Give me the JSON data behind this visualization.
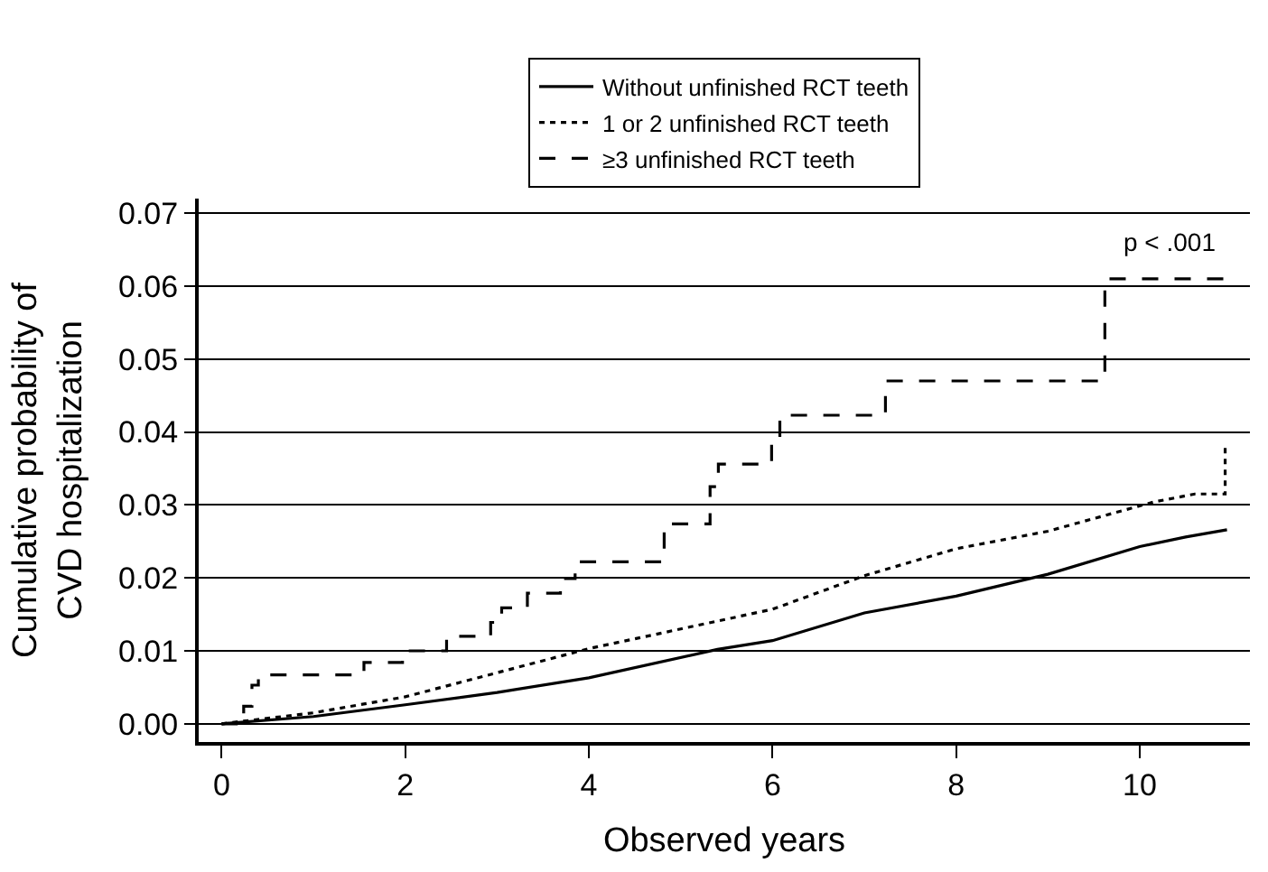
{
  "chart_data": {
    "type": "line",
    "xlabel": "Observed years",
    "ylabel": "Cumulative probability of\nCVD hospitalization",
    "annotations": [
      "p < .001"
    ],
    "xlim": [
      -0.25,
      11.2
    ],
    "xticks": [
      0,
      2,
      4,
      6,
      8,
      10
    ],
    "ylim": [
      -0.0025,
      0.072
    ],
    "yticks": [
      {
        "value": 0,
        "label": "0.00"
      },
      {
        "value": 0.01,
        "label": "0.01"
      },
      {
        "value": 0.02,
        "label": "0.02"
      },
      {
        "value": 0.03,
        "label": "0.03"
      },
      {
        "value": 0.04,
        "label": "0.04"
      },
      {
        "value": 0.05,
        "label": "0.05"
      },
      {
        "value": 0.06,
        "label": "0.06"
      },
      {
        "value": 0.07,
        "label": "0.07"
      }
    ],
    "grid": "y",
    "legend": "top",
    "marker": "none",
    "series": [
      {
        "name": "Without unfinished RCT teeth",
        "color": "#000000",
        "line_style": "solid",
        "x": [
          0,
          1,
          2,
          3,
          4,
          5.4,
          6,
          7,
          8,
          9,
          10,
          10.5,
          10.95
        ],
        "values": [
          0,
          0.001,
          0.0026,
          0.0043,
          0.0063,
          0.0102,
          0.0114,
          0.0152,
          0.0175,
          0.0205,
          0.0243,
          0.0256,
          0.0266
        ]
      },
      {
        "name": "1 or 2 unfinished RCT teeth",
        "color": "#000000",
        "line_style": "dotted",
        "x": [
          0,
          1,
          2,
          3,
          4,
          5,
          6,
          7,
          8,
          9,
          10.15,
          10.6,
          10.93,
          10.93
        ],
        "values": [
          0,
          0.0015,
          0.0037,
          0.007,
          0.0103,
          0.013,
          0.0157,
          0.0203,
          0.024,
          0.0264,
          0.0304,
          0.0315,
          0.0315,
          0.0378
        ]
      },
      {
        "name": "≥3 unfinished RCT teeth",
        "color": "#000000",
        "line_style": "dashed",
        "type": "step",
        "x": [
          0,
          0.16,
          0.24,
          0.33,
          0.4,
          1.55,
          1.97,
          2.45,
          2.93,
          3.05,
          3.33,
          3.69,
          3.85,
          4.82,
          5.32,
          5.41,
          5.99,
          6.08,
          7.23,
          9.62,
          10.97
        ],
        "values": [
          0,
          0.0012,
          0.0024,
          0.0053,
          0.0067,
          0.0084,
          0.01,
          0.012,
          0.0139,
          0.0159,
          0.0179,
          0.0199,
          0.0222,
          0.0274,
          0.0325,
          0.0356,
          0.039,
          0.0423,
          0.047,
          0.061,
          0.061
        ]
      }
    ]
  }
}
